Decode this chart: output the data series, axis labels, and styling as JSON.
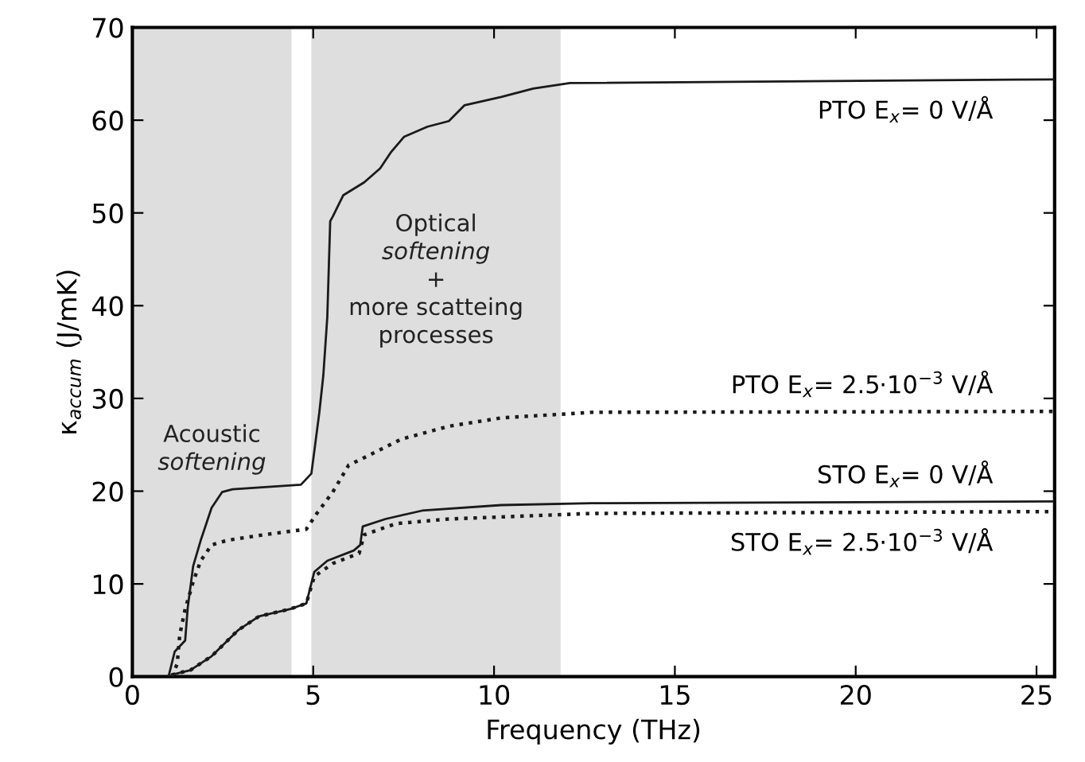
{
  "chart_data": {
    "type": "line",
    "xlabel": "Frequency (THz)",
    "ylabel": "κ$_{accum}$ (J/mK)",
    "xlim": [
      0,
      25.5
    ],
    "xticks": [
      0,
      5,
      10,
      15,
      20,
      25
    ],
    "ylim": [
      0,
      70
    ],
    "yticks": [
      0,
      10,
      20,
      30,
      40,
      50,
      60,
      70
    ],
    "grid": false,
    "legend": false,
    "marker": "none",
    "bands": [
      {
        "axis": "x",
        "from": 0,
        "to": 4.4,
        "label": "Acoustic\nsoftening",
        "color": "#dedede"
      },
      {
        "axis": "x",
        "from": 4.95,
        "to": 11.84,
        "label": "Optical\nsoftening\n+\nmore scatteing\nprocesses",
        "color": "#dedede"
      }
    ],
    "series": [
      {
        "name": "PTO E$_{x}$= 0 V/Å",
        "color": "#1a1a1a",
        "line_style": "solid",
        "x": [
          1.0,
          1.17,
          1.46,
          1.53,
          1.68,
          1.89,
          2.19,
          2.48,
          2.77,
          4.66,
          4.95,
          5.17,
          5.28,
          5.39,
          5.47,
          5.54,
          5.83,
          6.41,
          6.85,
          7.14,
          7.51,
          8.16,
          8.75,
          9.18,
          10.2,
          11.08,
          12.1,
          25.5
        ],
        "values": [
          0,
          2.7,
          3.9,
          7.4,
          11.9,
          14.7,
          18.2,
          19.9,
          20.2,
          20.7,
          21.9,
          28.5,
          32.5,
          38.8,
          49.1,
          49.6,
          51.9,
          53.3,
          54.8,
          56.5,
          58.2,
          59.3,
          59.9,
          61.6,
          62.5,
          63.4,
          64.0,
          64.4
        ]
      },
      {
        "name": "PTO E$_{x}$= 2.5·10$^{−3}$ V/Å",
        "color": "#1a1a1a",
        "line_style": "dotted",
        "x": [
          1.1,
          1.24,
          1.31,
          1.46,
          1.68,
          1.89,
          2.19,
          2.62,
          3.64,
          4.81,
          5.1,
          5.54,
          5.98,
          6.56,
          7.43,
          8.75,
          10.2,
          12.7,
          25.5
        ],
        "values": [
          0,
          1.4,
          4.5,
          7.3,
          10.2,
          12.5,
          14.2,
          14.7,
          15.3,
          15.9,
          17.6,
          19.9,
          22.8,
          23.9,
          25.6,
          27.0,
          27.9,
          28.5,
          28.6
        ]
      },
      {
        "name": "STO E$_{x}$= 0 V/Å",
        "color": "#1a1a1a",
        "line_style": "solid",
        "x": [
          1.09,
          1.6,
          2.19,
          2.92,
          3.5,
          4.37,
          4.81,
          5.03,
          5.39,
          6.12,
          6.3,
          6.37,
          7.0,
          8.01,
          10.2,
          12.7,
          25.5
        ],
        "values": [
          0.2,
          0.7,
          2.2,
          5.0,
          6.5,
          7.3,
          7.9,
          11.3,
          12.5,
          13.6,
          14.2,
          16.2,
          17.0,
          17.9,
          18.5,
          18.7,
          18.9
        ]
      },
      {
        "name": "STO E$_{x}$= 2.5·10$^{−3}$ V/Å",
        "color": "#1a1a1a",
        "line_style": "dotted",
        "x": [
          1.09,
          1.6,
          2.19,
          2.92,
          3.5,
          4.37,
          4.81,
          5.03,
          5.54,
          6.27,
          6.41,
          7.29,
          8.75,
          12.7,
          25.5
        ],
        "values": [
          0.2,
          0.7,
          2.2,
          5.0,
          6.5,
          7.3,
          7.9,
          10.8,
          12.2,
          13.3,
          15.3,
          16.5,
          17.0,
          17.6,
          17.8
        ]
      }
    ]
  }
}
